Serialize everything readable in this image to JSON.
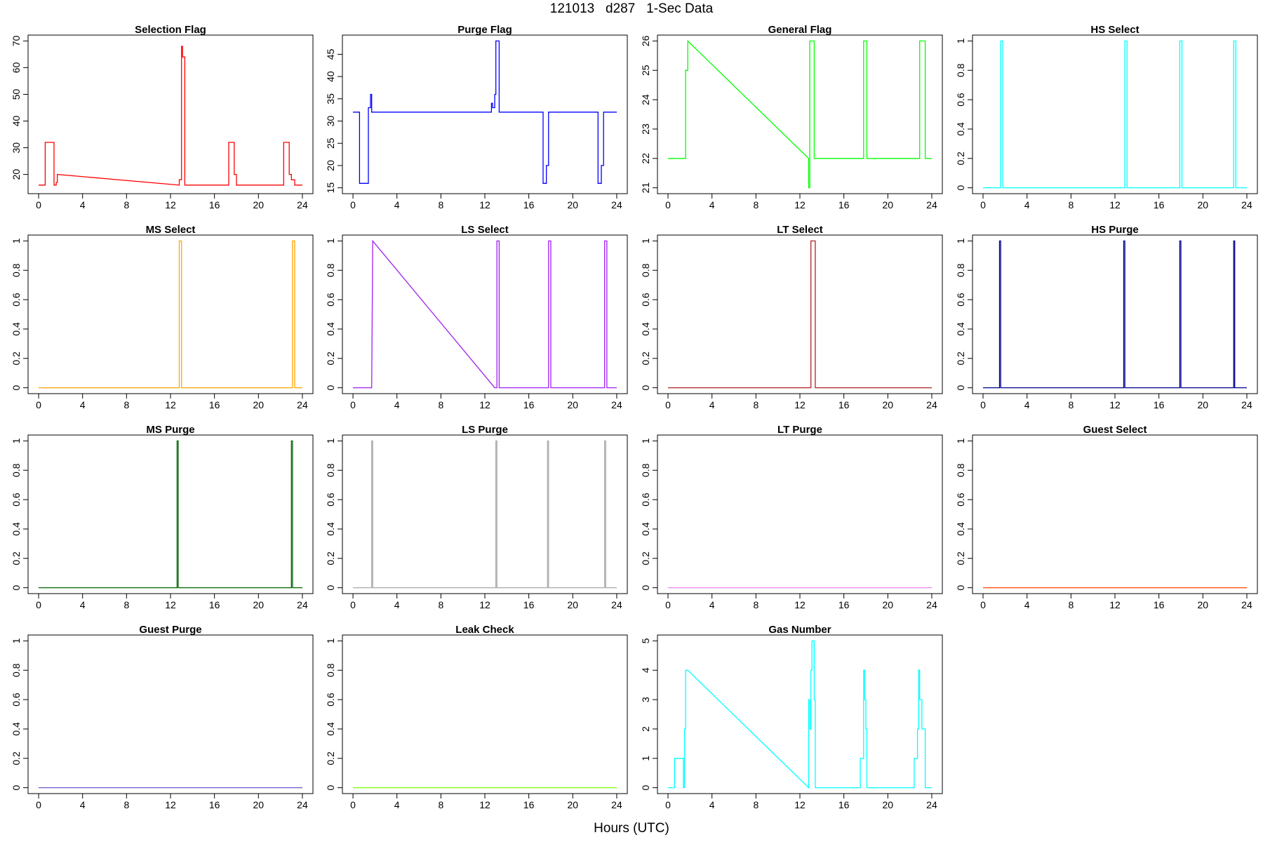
{
  "title": "121013   d287   1-Sec Data",
  "x_axis_label": "Hours (UTC)",
  "chart_data": [
    {
      "type": "line",
      "title": "Selection Flag",
      "color": "#ff0000",
      "xlim": [
        0,
        24
      ],
      "ylim": [
        15,
        70
      ],
      "yticks": [
        20,
        30,
        40,
        50,
        60,
        70
      ],
      "xticks": [
        0,
        4,
        8,
        12,
        16,
        20,
        24
      ],
      "x": [
        0,
        0.6,
        0.6,
        1.4,
        1.4,
        1.6,
        1.6,
        1.7,
        1.7,
        12.8,
        12.8,
        13.0,
        13.0,
        13.1,
        13.1,
        13.3,
        13.3,
        17.3,
        17.3,
        17.8,
        17.8,
        18.0,
        18.0,
        22.3,
        22.3,
        22.8,
        22.8,
        23.0,
        23.0,
        23.3,
        23.3,
        24
      ],
      "y": [
        16,
        16,
        32,
        32,
        16,
        16,
        17,
        17,
        20,
        16,
        18,
        18,
        68,
        68,
        64,
        64,
        16,
        16,
        32,
        32,
        20,
        20,
        16,
        16,
        32,
        32,
        20,
        20,
        18,
        18,
        16,
        16
      ]
    },
    {
      "type": "line",
      "title": "Purge Flag",
      "color": "#0000ff",
      "xlim": [
        0,
        24
      ],
      "ylim": [
        15,
        48
      ],
      "yticks": [
        15,
        20,
        25,
        30,
        35,
        40,
        45
      ],
      "xticks": [
        0,
        4,
        8,
        12,
        16,
        20,
        24
      ],
      "x": [
        0,
        0.6,
        0.6,
        1.4,
        1.4,
        1.6,
        1.6,
        1.7,
        1.7,
        1.75,
        1.75,
        12.6,
        12.6,
        12.7,
        12.7,
        12.9,
        12.9,
        13.0,
        13.0,
        13.3,
        13.3,
        17.3,
        17.3,
        17.6,
        17.6,
        17.8,
        17.8,
        22.3,
        22.3,
        22.6,
        22.6,
        22.8,
        22.8,
        24
      ],
      "y": [
        32,
        32,
        16,
        16,
        33,
        33,
        36,
        36,
        32,
        32,
        32,
        32,
        34,
        34,
        33,
        33,
        36,
        36,
        48,
        48,
        32,
        32,
        16,
        16,
        20,
        20,
        32,
        32,
        16,
        16,
        20,
        20,
        32,
        32
      ]
    },
    {
      "type": "line",
      "title": "General Flag",
      "color": "#00ff00",
      "xlim": [
        0,
        24
      ],
      "ylim": [
        21,
        26
      ],
      "yticks": [
        21,
        22,
        23,
        24,
        25,
        26
      ],
      "xticks": [
        0,
        4,
        8,
        12,
        16,
        20,
        24
      ],
      "x": [
        0,
        1.6,
        1.6,
        1.8,
        1.8,
        12.8,
        12.8,
        12.9,
        12.9,
        13.3,
        13.3,
        17.8,
        17.8,
        18.1,
        18.1,
        22.9,
        22.9,
        23.4,
        23.4,
        24
      ],
      "y": [
        22,
        22,
        25,
        25,
        26,
        22,
        21,
        21,
        26,
        26,
        22,
        22,
        26,
        26,
        22,
        22,
        26,
        26,
        22,
        22
      ]
    },
    {
      "type": "line",
      "title": "HS Select",
      "color": "#00ffff",
      "xlim": [
        0,
        24
      ],
      "ylim": [
        0,
        1
      ],
      "yticks": [
        0,
        0.2,
        0.4,
        0.6,
        0.8,
        1
      ],
      "xticks": [
        0,
        4,
        8,
        12,
        16,
        20,
        24
      ],
      "x": [
        0,
        1.6,
        1.6,
        1.8,
        1.8,
        12.9,
        12.9,
        13.1,
        13.1,
        17.9,
        17.9,
        18.1,
        18.1,
        22.8,
        22.8,
        23.0,
        23.0,
        24
      ],
      "y": [
        0,
        0,
        1,
        1,
        0,
        0,
        1,
        1,
        0,
        0,
        1,
        1,
        0,
        0,
        1,
        1,
        0,
        0
      ]
    },
    {
      "type": "line",
      "title": "MS Select",
      "color": "#ffa500",
      "xlim": [
        0,
        24
      ],
      "ylim": [
        0,
        1
      ],
      "yticks": [
        0,
        0.2,
        0.4,
        0.6,
        0.8,
        1
      ],
      "xticks": [
        0,
        4,
        8,
        12,
        16,
        20,
        24
      ],
      "x": [
        0,
        12.8,
        12.8,
        13.0,
        13.0,
        23.1,
        23.1,
        23.3,
        23.3,
        24
      ],
      "y": [
        0,
        0,
        1,
        1,
        0,
        0,
        1,
        1,
        0,
        0
      ]
    },
    {
      "type": "line",
      "title": "LS Select",
      "color": "#a020f0",
      "xlim": [
        0,
        24
      ],
      "ylim": [
        0,
        1
      ],
      "yticks": [
        0,
        0.2,
        0.4,
        0.6,
        0.8,
        1
      ],
      "xticks": [
        0,
        4,
        8,
        12,
        16,
        20,
        24
      ],
      "x": [
        0,
        1.7,
        1.8,
        12.9,
        13.1,
        13.1,
        13.3,
        13.3,
        17.8,
        17.8,
        18.0,
        18.0,
        22.9,
        22.9,
        23.1,
        23.1,
        24
      ],
      "y": [
        0,
        0,
        1,
        0,
        0,
        1,
        1,
        0,
        0,
        1,
        1,
        0,
        0,
        1,
        1,
        0,
        0
      ]
    },
    {
      "type": "line",
      "title": "LT Select",
      "color": "#b22222",
      "xlim": [
        0,
        24
      ],
      "ylim": [
        0,
        1
      ],
      "yticks": [
        0,
        0.2,
        0.4,
        0.6,
        0.8,
        1
      ],
      "xticks": [
        0,
        4,
        8,
        12,
        16,
        20,
        24
      ],
      "x": [
        0,
        13.0,
        13.0,
        13.4,
        13.4,
        24
      ],
      "y": [
        0,
        0,
        1,
        1,
        0,
        0
      ]
    },
    {
      "type": "line",
      "title": "HS Purge",
      "color": "#00008b",
      "xlim": [
        0,
        24
      ],
      "ylim": [
        0,
        1
      ],
      "yticks": [
        0,
        0.2,
        0.4,
        0.6,
        0.8,
        1
      ],
      "xticks": [
        0,
        4,
        8,
        12,
        16,
        20,
        24
      ],
      "x": [
        0,
        1.5,
        1.5,
        1.6,
        1.6,
        12.8,
        12.8,
        12.9,
        12.9,
        17.9,
        17.9,
        18.0,
        18.0,
        22.8,
        22.8,
        22.9,
        22.9,
        24
      ],
      "y": [
        0,
        0,
        1,
        1,
        0,
        0,
        1,
        1,
        0,
        0,
        1,
        1,
        0,
        0,
        1,
        1,
        0,
        0
      ]
    },
    {
      "type": "line",
      "title": "MS Purge",
      "color": "#006400",
      "xlim": [
        0,
        24
      ],
      "ylim": [
        0,
        1
      ],
      "yticks": [
        0,
        0.2,
        0.4,
        0.6,
        0.8,
        1
      ],
      "xticks": [
        0,
        4,
        8,
        12,
        16,
        20,
        24
      ],
      "x": [
        0,
        12.6,
        12.6,
        12.7,
        12.7,
        23.0,
        23.0,
        23.1,
        23.1,
        24
      ],
      "y": [
        0,
        0,
        1,
        1,
        0,
        0,
        1,
        1,
        0,
        0
      ]
    },
    {
      "type": "line",
      "title": "LS Purge",
      "color": "#a9a9a9",
      "xlim": [
        0,
        24
      ],
      "ylim": [
        0,
        1
      ],
      "yticks": [
        0,
        0.2,
        0.4,
        0.6,
        0.8,
        1
      ],
      "xticks": [
        0,
        4,
        8,
        12,
        16,
        20,
        24
      ],
      "x": [
        0,
        1.7,
        1.7,
        1.8,
        1.8,
        13.0,
        13.0,
        13.1,
        13.1,
        17.7,
        17.7,
        17.8,
        17.8,
        22.9,
        22.9,
        23.0,
        23.0,
        24
      ],
      "y": [
        0,
        0,
        1,
        1,
        0,
        0,
        1,
        1,
        0,
        0,
        1,
        1,
        0,
        0,
        1,
        1,
        0,
        0
      ]
    },
    {
      "type": "line",
      "title": "LT Purge",
      "color": "#ee82ee",
      "xlim": [
        0,
        24
      ],
      "ylim": [
        0,
        1
      ],
      "yticks": [
        0,
        0.2,
        0.4,
        0.6,
        0.8,
        1
      ],
      "xticks": [
        0,
        4,
        8,
        12,
        16,
        20,
        24
      ],
      "x": [
        0,
        24
      ],
      "y": [
        0,
        0
      ]
    },
    {
      "type": "line",
      "title": "Guest Select",
      "color": "#ff4500",
      "xlim": [
        0,
        24
      ],
      "ylim": [
        0,
        1
      ],
      "yticks": [
        0,
        0.2,
        0.4,
        0.6,
        0.8,
        1
      ],
      "xticks": [
        0,
        4,
        8,
        12,
        16,
        20,
        24
      ],
      "x": [
        0,
        24
      ],
      "y": [
        0,
        0
      ]
    },
    {
      "type": "line",
      "title": "Guest Purge",
      "color": "#6a5acd",
      "xlim": [
        0,
        24
      ],
      "ylim": [
        0,
        1
      ],
      "yticks": [
        0,
        0.2,
        0.4,
        0.6,
        0.8,
        1
      ],
      "xticks": [
        0,
        4,
        8,
        12,
        16,
        20,
        24
      ],
      "x": [
        0,
        24
      ],
      "y": [
        0,
        0
      ]
    },
    {
      "type": "line",
      "title": "Leak Check",
      "color": "#7cfc00",
      "xlim": [
        0,
        24
      ],
      "ylim": [
        0,
        1
      ],
      "yticks": [
        0,
        0.2,
        0.4,
        0.6,
        0.8,
        1
      ],
      "xticks": [
        0,
        4,
        8,
        12,
        16,
        20,
        24
      ],
      "x": [
        0,
        24
      ],
      "y": [
        0,
        0
      ]
    },
    {
      "type": "line",
      "title": "Gas Number",
      "color": "#00ffff",
      "xlim": [
        0,
        24
      ],
      "ylim": [
        0,
        5
      ],
      "yticks": [
        0,
        1,
        2,
        3,
        4,
        5
      ],
      "xticks": [
        0,
        4,
        8,
        12,
        16,
        20,
        24
      ],
      "x": [
        0,
        0.6,
        0.6,
        1.4,
        1.4,
        1.5,
        1.5,
        1.6,
        1.6,
        1.8,
        12.8,
        12.8,
        12.9,
        12.9,
        13.0,
        13.0,
        13.1,
        13.1,
        13.3,
        13.3,
        13.4,
        13.4,
        17.5,
        17.5,
        17.8,
        17.8,
        17.9,
        17.9,
        18.0,
        18.0,
        18.1,
        18.1,
        22.4,
        22.4,
        22.7,
        22.7,
        22.8,
        22.8,
        22.9,
        22.9,
        23.1,
        23.1,
        23.4,
        23.4,
        24
      ],
      "y": [
        0,
        0,
        1,
        1,
        0,
        0,
        2,
        2,
        4,
        4,
        0,
        3,
        3,
        2,
        2,
        4,
        4,
        5,
        5,
        3,
        3,
        0,
        0,
        1,
        1,
        4,
        4,
        3,
        3,
        2,
        2,
        0,
        0,
        1,
        1,
        2,
        2,
        4,
        4,
        3,
        3,
        2,
        2,
        0,
        0
      ]
    }
  ]
}
